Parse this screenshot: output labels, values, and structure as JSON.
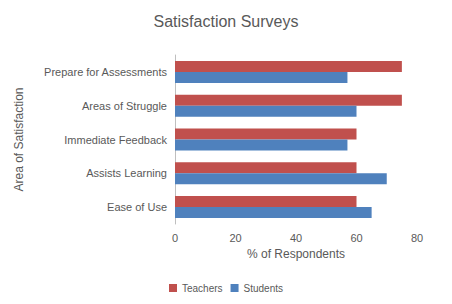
{
  "chart_data": {
    "type": "bar",
    "title": "Satisfaction Surveys",
    "xlabel": "% of Respondents",
    "ylabel": "Area of Satisfaction",
    "orientation": "horizontal",
    "categories": [
      "Ease of Use",
      "Assists Learning",
      "Immediate Feedback",
      "Areas of Struggle",
      "Prepare for Assessments"
    ],
    "series": [
      {
        "name": "Teachers",
        "color": "#c0504d",
        "values": [
          60,
          60,
          60,
          75,
          75
        ]
      },
      {
        "name": "Students",
        "color": "#4f81bd",
        "values": [
          65,
          70,
          57,
          60,
          57
        ]
      }
    ],
    "xlim": [
      0,
      80
    ],
    "xticks": [
      0,
      20,
      40,
      60,
      80
    ],
    "grid": false,
    "legend": "bottom"
  }
}
